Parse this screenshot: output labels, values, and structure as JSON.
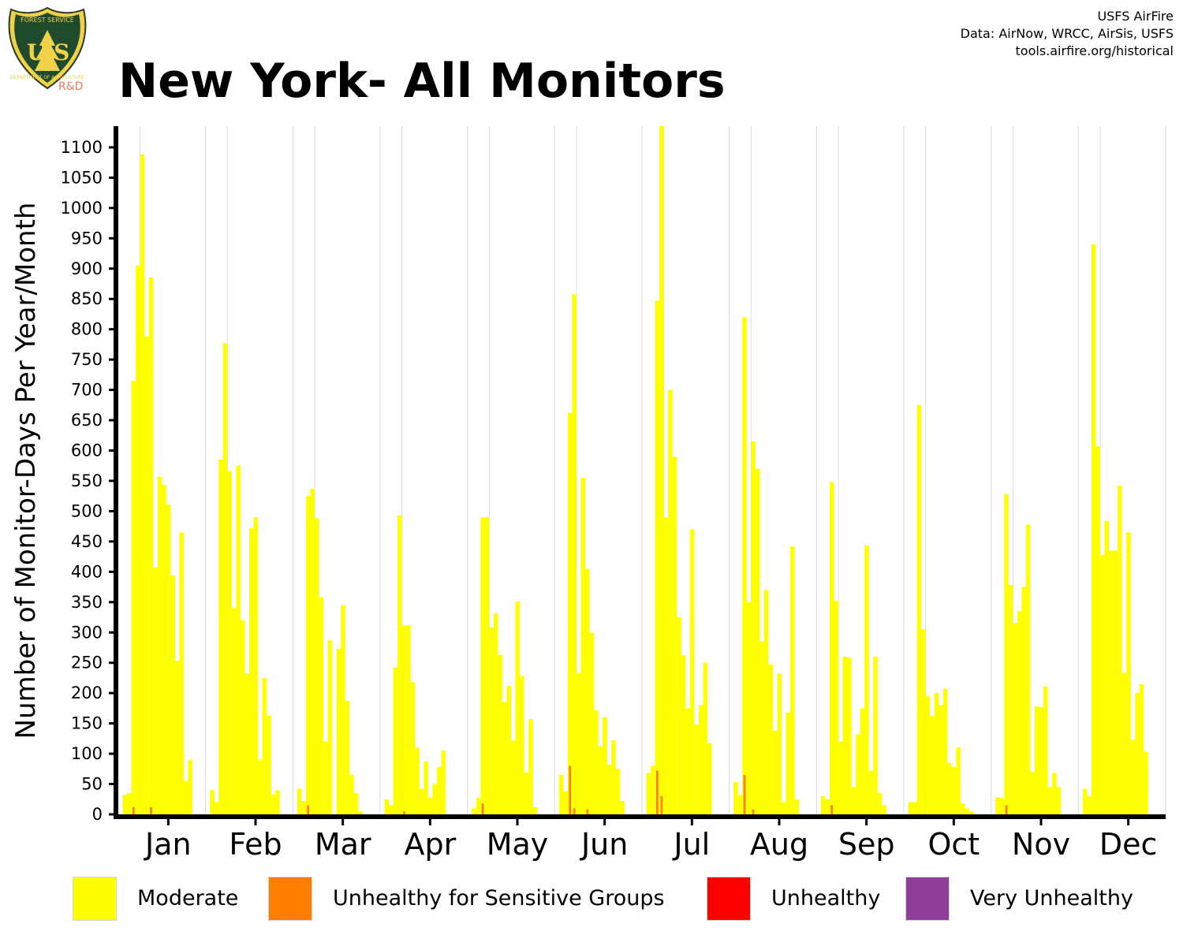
{
  "logo": {
    "top_text": "FOREST SERVICE",
    "letters": "U S",
    "bottom_text": "DEPARTMENT OF AGRICULTURE",
    "badge": "R&D"
  },
  "header": {
    "title": "New York- All Monitors",
    "credits": [
      "USFS AirFire",
      "Data: AirNow, WRCC, AirSis, USFS",
      "tools.airfire.org/historical"
    ]
  },
  "legend": {
    "items": [
      {
        "label": "Moderate",
        "color": "#ffff00"
      },
      {
        "label": "Unhealthy for Sensitive Groups",
        "color": "#ff7e00"
      },
      {
        "label": "Unhealthy",
        "color": "#ff0000"
      },
      {
        "label": "Very Unhealthy",
        "color": "#8f3f97"
      }
    ]
  },
  "chart_data": {
    "type": "bar",
    "title": "New York- All Monitors",
    "xlabel": "",
    "ylabel": "Number of Monitor-Days Per Year/Month",
    "ylim": [
      0,
      1135
    ],
    "yticks": [
      0,
      50,
      100,
      150,
      200,
      250,
      300,
      350,
      400,
      450,
      500,
      550,
      600,
      650,
      700,
      750,
      800,
      850,
      900,
      950,
      1000,
      1050,
      1100
    ],
    "months": [
      "Jan",
      "Feb",
      "Mar",
      "Apr",
      "May",
      "Jun",
      "Jul",
      "Aug",
      "Sep",
      "Oct",
      "Nov",
      "Dec"
    ],
    "bars_per_month": 20,
    "grid": "vertical lines at year-group boundaries",
    "series": [
      {
        "name": "Moderate",
        "color": "#ffff00",
        "values": [
          [
            0,
            32,
            35,
            715,
            905,
            1088,
            788,
            885,
            407,
            557,
            543,
            511,
            394,
            253,
            465,
            55,
            90,
            0,
            0,
            0
          ],
          [
            0,
            40,
            20,
            585,
            777,
            566,
            340,
            575,
            320,
            232,
            472,
            490,
            90,
            225,
            163,
            33,
            40,
            0,
            0,
            0
          ],
          [
            0,
            42,
            22,
            525,
            537,
            488,
            358,
            120,
            287,
            0,
            273,
            345,
            187,
            65,
            35,
            5,
            0,
            0,
            0,
            0
          ],
          [
            0,
            25,
            15,
            242,
            493,
            311,
            312,
            218,
            110,
            42,
            87,
            28,
            50,
            78,
            105,
            0,
            0,
            0,
            0,
            0
          ],
          [
            0,
            10,
            27,
            490,
            490,
            308,
            331,
            263,
            185,
            212,
            122,
            351,
            228,
            69,
            157,
            12,
            0,
            0,
            0,
            0
          ],
          [
            0,
            65,
            38,
            662,
            858,
            233,
            555,
            405,
            300,
            172,
            112,
            160,
            82,
            122,
            75,
            22,
            0,
            0,
            0,
            0
          ],
          [
            0,
            68,
            80,
            847,
            1135,
            490,
            700,
            590,
            325,
            262,
            175,
            470,
            148,
            180,
            250,
            117,
            0,
            0,
            0,
            0
          ],
          [
            0,
            53,
            32,
            820,
            350,
            615,
            570,
            285,
            370,
            247,
            138,
            232,
            20,
            168,
            442,
            25,
            0,
            0,
            0,
            0
          ],
          [
            0,
            30,
            25,
            548,
            352,
            120,
            260,
            258,
            45,
            132,
            175,
            443,
            72,
            260,
            35,
            15,
            0,
            0,
            0,
            0
          ],
          [
            0,
            20,
            20,
            675,
            305,
            195,
            162,
            200,
            180,
            207,
            85,
            78,
            110,
            18,
            10,
            5,
            0,
            0,
            0,
            0
          ],
          [
            0,
            28,
            27,
            528,
            378,
            315,
            335,
            375,
            478,
            70,
            178,
            177,
            211,
            45,
            68,
            45,
            0,
            0,
            0,
            0
          ],
          [
            0,
            42,
            30,
            940,
            607,
            428,
            484,
            435,
            435,
            542,
            233,
            465,
            123,
            200,
            215,
            103,
            0,
            0,
            0,
            0
          ]
        ]
      },
      {
        "name": "Unhealthy for Sensitive Groups",
        "color": "#ff7e00",
        "values": [
          [
            0,
            0,
            0,
            12,
            0,
            0,
            0,
            12,
            0,
            0,
            0,
            0,
            0,
            0,
            0,
            0,
            0,
            0,
            0,
            0
          ],
          [
            0,
            0,
            0,
            0,
            0,
            0,
            0,
            0,
            0,
            0,
            0,
            0,
            0,
            0,
            0,
            0,
            0,
            0,
            0,
            0
          ],
          [
            0,
            0,
            0,
            15,
            0,
            0,
            0,
            0,
            0,
            0,
            0,
            0,
            0,
            0,
            0,
            0,
            0,
            0,
            0,
            0
          ],
          [
            0,
            0,
            0,
            0,
            0,
            5,
            0,
            0,
            0,
            0,
            0,
            0,
            0,
            0,
            0,
            0,
            0,
            0,
            0,
            0
          ],
          [
            0,
            0,
            0,
            18,
            0,
            0,
            0,
            0,
            0,
            0,
            0,
            0,
            0,
            0,
            0,
            0,
            0,
            0,
            0,
            0
          ],
          [
            0,
            0,
            0,
            80,
            10,
            0,
            0,
            8,
            0,
            0,
            0,
            0,
            0,
            0,
            0,
            0,
            0,
            0,
            0,
            0
          ],
          [
            0,
            0,
            0,
            72,
            30,
            0,
            0,
            0,
            0,
            0,
            0,
            0,
            0,
            0,
            0,
            0,
            0,
            0,
            0,
            0
          ],
          [
            0,
            0,
            0,
            65,
            0,
            8,
            0,
            0,
            0,
            0,
            0,
            0,
            0,
            0,
            0,
            0,
            0,
            0,
            0,
            0
          ],
          [
            0,
            0,
            0,
            15,
            0,
            0,
            0,
            0,
            0,
            0,
            0,
            0,
            0,
            0,
            0,
            0,
            0,
            0,
            0,
            0
          ],
          [
            0,
            0,
            0,
            0,
            0,
            0,
            0,
            0,
            0,
            0,
            0,
            0,
            0,
            0,
            0,
            0,
            0,
            0,
            0,
            0
          ],
          [
            0,
            0,
            0,
            15,
            0,
            0,
            0,
            0,
            0,
            0,
            0,
            0,
            0,
            0,
            0,
            0,
            0,
            0,
            0,
            0
          ],
          [
            0,
            0,
            0,
            0,
            0,
            0,
            0,
            0,
            0,
            0,
            0,
            0,
            0,
            0,
            0,
            0,
            0,
            0,
            0,
            0
          ]
        ]
      }
    ]
  }
}
